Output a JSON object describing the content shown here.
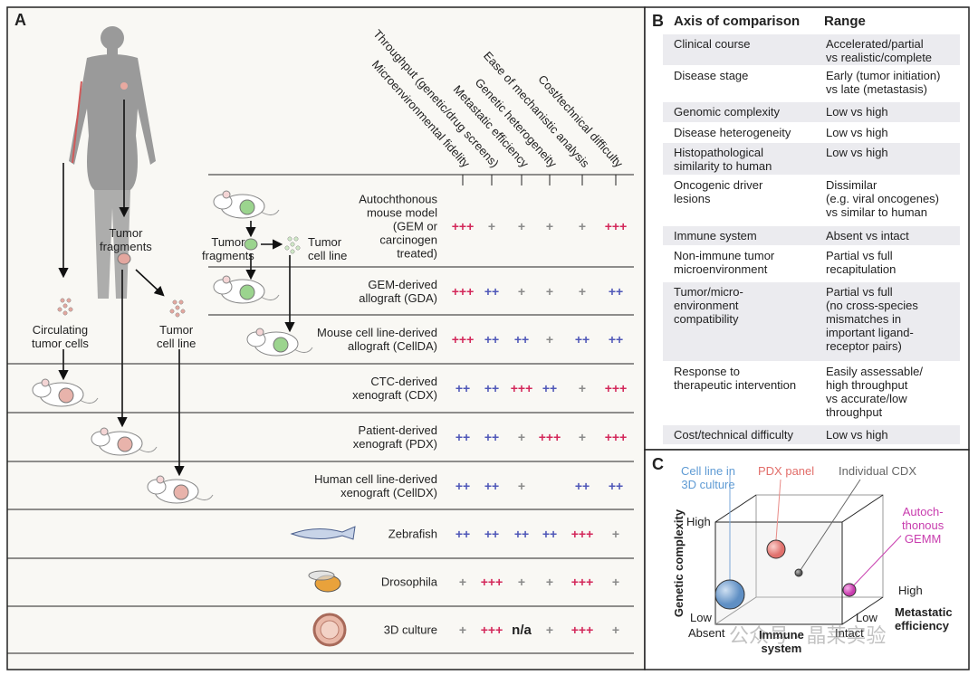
{
  "panel_a": {
    "label": "A",
    "columns": [
      "Microenvironmental fidelity",
      "Throughput (genetic/drug screens)",
      "Metastatic efficiency",
      "Genetic heterogeneity",
      "Ease of mechanistic analysis",
      "Cost/technical difficulty"
    ],
    "value_colors": {
      "+++": "#d3285a",
      "++": "#4f57b8",
      "+": "#8a8a8a",
      "n/a": "#222222"
    },
    "rows": [
      {
        "name": "Autochthonous\nmouse model\n(GEM or\ncarcinogen\ntreated)",
        "values": [
          "+++",
          "+",
          "+",
          "+",
          "+",
          "+++"
        ]
      },
      {
        "name": "GEM-derived\nallograft (GDA)",
        "values": [
          "+++",
          "++",
          "+",
          "+",
          "+",
          "++"
        ]
      },
      {
        "name": "Mouse cell line-derived\nallograft (CellDA)",
        "values": [
          "+++",
          "++",
          "++",
          "+",
          "++",
          "++"
        ]
      },
      {
        "name": "CTC-derived\nxenograft (CDX)",
        "values": [
          "++",
          "++",
          "+++",
          "++",
          "+",
          "+++"
        ]
      },
      {
        "name": "Patient-derived\nxenograft (PDX)",
        "values": [
          "++",
          "++",
          "+",
          "+++",
          "+",
          "+++"
        ]
      },
      {
        "name": "Human cell line-derived\nxenograft (CellDX)",
        "values": [
          "++",
          "++",
          "+",
          null,
          "++",
          "++"
        ]
      },
      {
        "name": "Zebrafish",
        "values": [
          "++",
          "++",
          "++",
          "++",
          "+++",
          "+"
        ]
      },
      {
        "name": "Drosophila",
        "values": [
          "+",
          "+++",
          "+",
          "+",
          "+++",
          "+"
        ]
      },
      {
        "name": "3D culture",
        "values": [
          "+",
          "+++",
          "n/a",
          "+",
          "+++",
          "+"
        ]
      }
    ],
    "labels": [
      "Tumor\nfragments",
      "Circulating\ntumor cells",
      "Tumor\ncell line",
      "Tumor\nfragments",
      "Tumor\ncell line"
    ]
  },
  "panel_b": {
    "label": "B",
    "headers": [
      "Axis of comparison",
      "Range"
    ],
    "rows": [
      [
        "Clinical course",
        "Accelerated/partial\nvs realistic/complete"
      ],
      [
        "Disease stage",
        "Early (tumor initiation)\nvs late (metastasis)"
      ],
      [
        "Genomic complexity",
        "Low vs high"
      ],
      [
        "Disease heterogeneity",
        "Low vs high"
      ],
      [
        "Histopathological\nsimilarity to human",
        "Low vs high"
      ],
      [
        "Oncogenic driver\nlesions",
        "Dissimilar\n(e.g. viral oncogenes)\nvs similar to human"
      ],
      [
        "Immune system",
        "Absent vs intact"
      ],
      [
        "Non-immune tumor\nmicroenvironment",
        "Partial vs full\nrecapitulation"
      ],
      [
        "Tumor/micro-\nenvironment\ncompatibility",
        "Partial vs full\n(no cross-species\nmismatches in\nimportant ligand-\nreceptor pairs)"
      ],
      [
        "Response to\ntherapeutic intervention",
        "Easily assessable/\nhigh throughput\nvs accurate/low\nthroughput"
      ],
      [
        "Cost/technical difficulty",
        "Low vs high"
      ]
    ]
  },
  "panel_c": {
    "label": "C",
    "models": [
      "Cell line in\n3D culture",
      "PDX panel",
      "Individual CDX",
      "Autoch-\nthonous\nGEMM"
    ],
    "y_axis": "Genetic complexity",
    "y_high": "High",
    "y_low": "Low",
    "x_low": "Absent",
    "x_axis": "Immune\nsystem",
    "x_high": "Intact",
    "z_low": "Low",
    "z_high": "High",
    "z_axis": "Metastatic\nefficiency"
  },
  "watermark": "公众号 · 晶莱实验"
}
